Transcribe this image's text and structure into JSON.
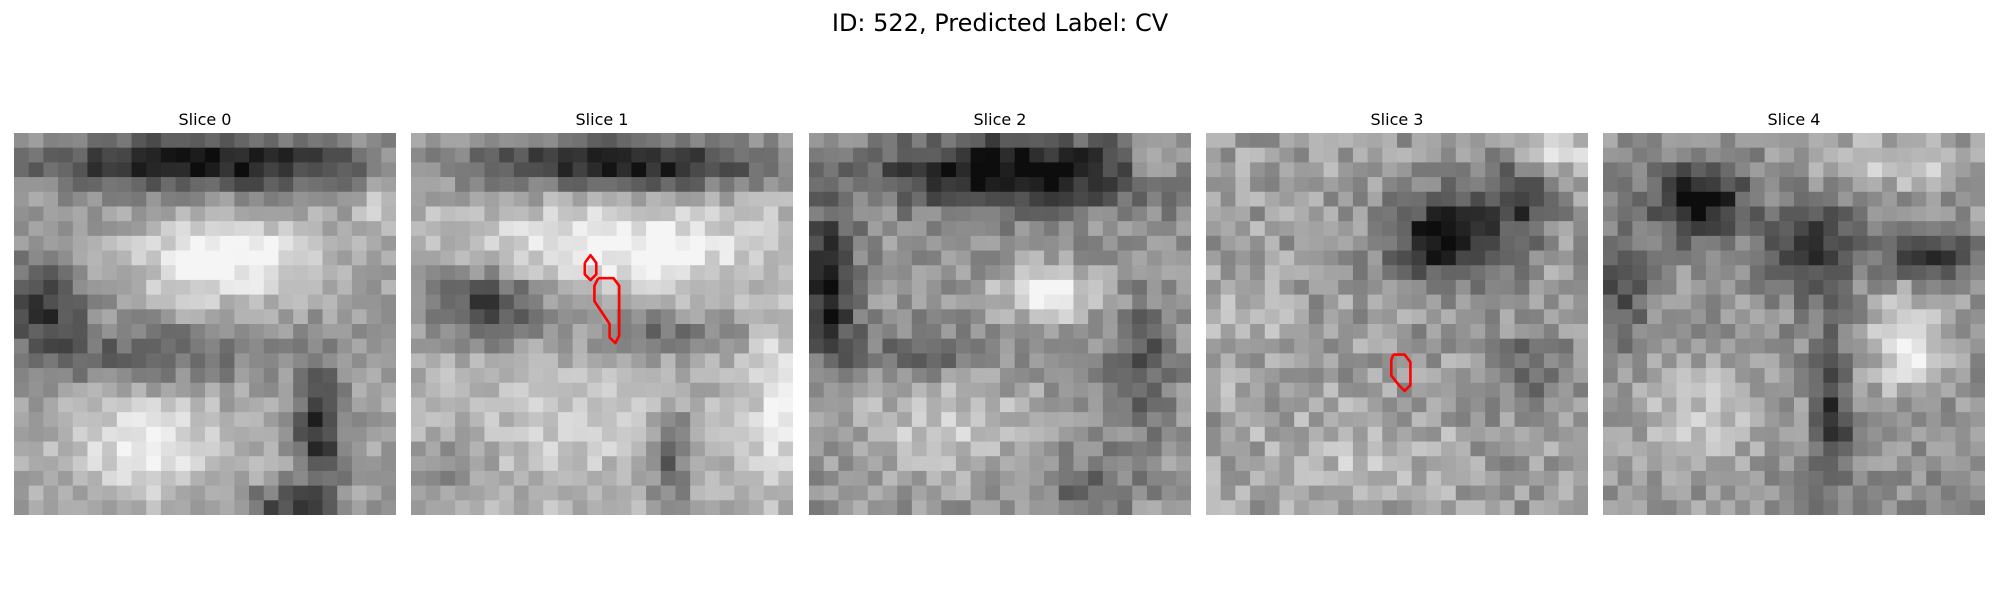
{
  "figure": {
    "title": "ID: 522, Predicted Label: CV"
  },
  "slices": [
    {
      "label": "Slice 0",
      "has_contour": false
    },
    {
      "label": "Slice 1",
      "has_contour": true
    },
    {
      "label": "Slice 2",
      "has_contour": false
    },
    {
      "label": "Slice 3",
      "has_contour": true
    },
    {
      "label": "Slice 4",
      "has_contour": false
    }
  ],
  "colors": {
    "contour": "#ff0000",
    "background": "#ffffff"
  }
}
